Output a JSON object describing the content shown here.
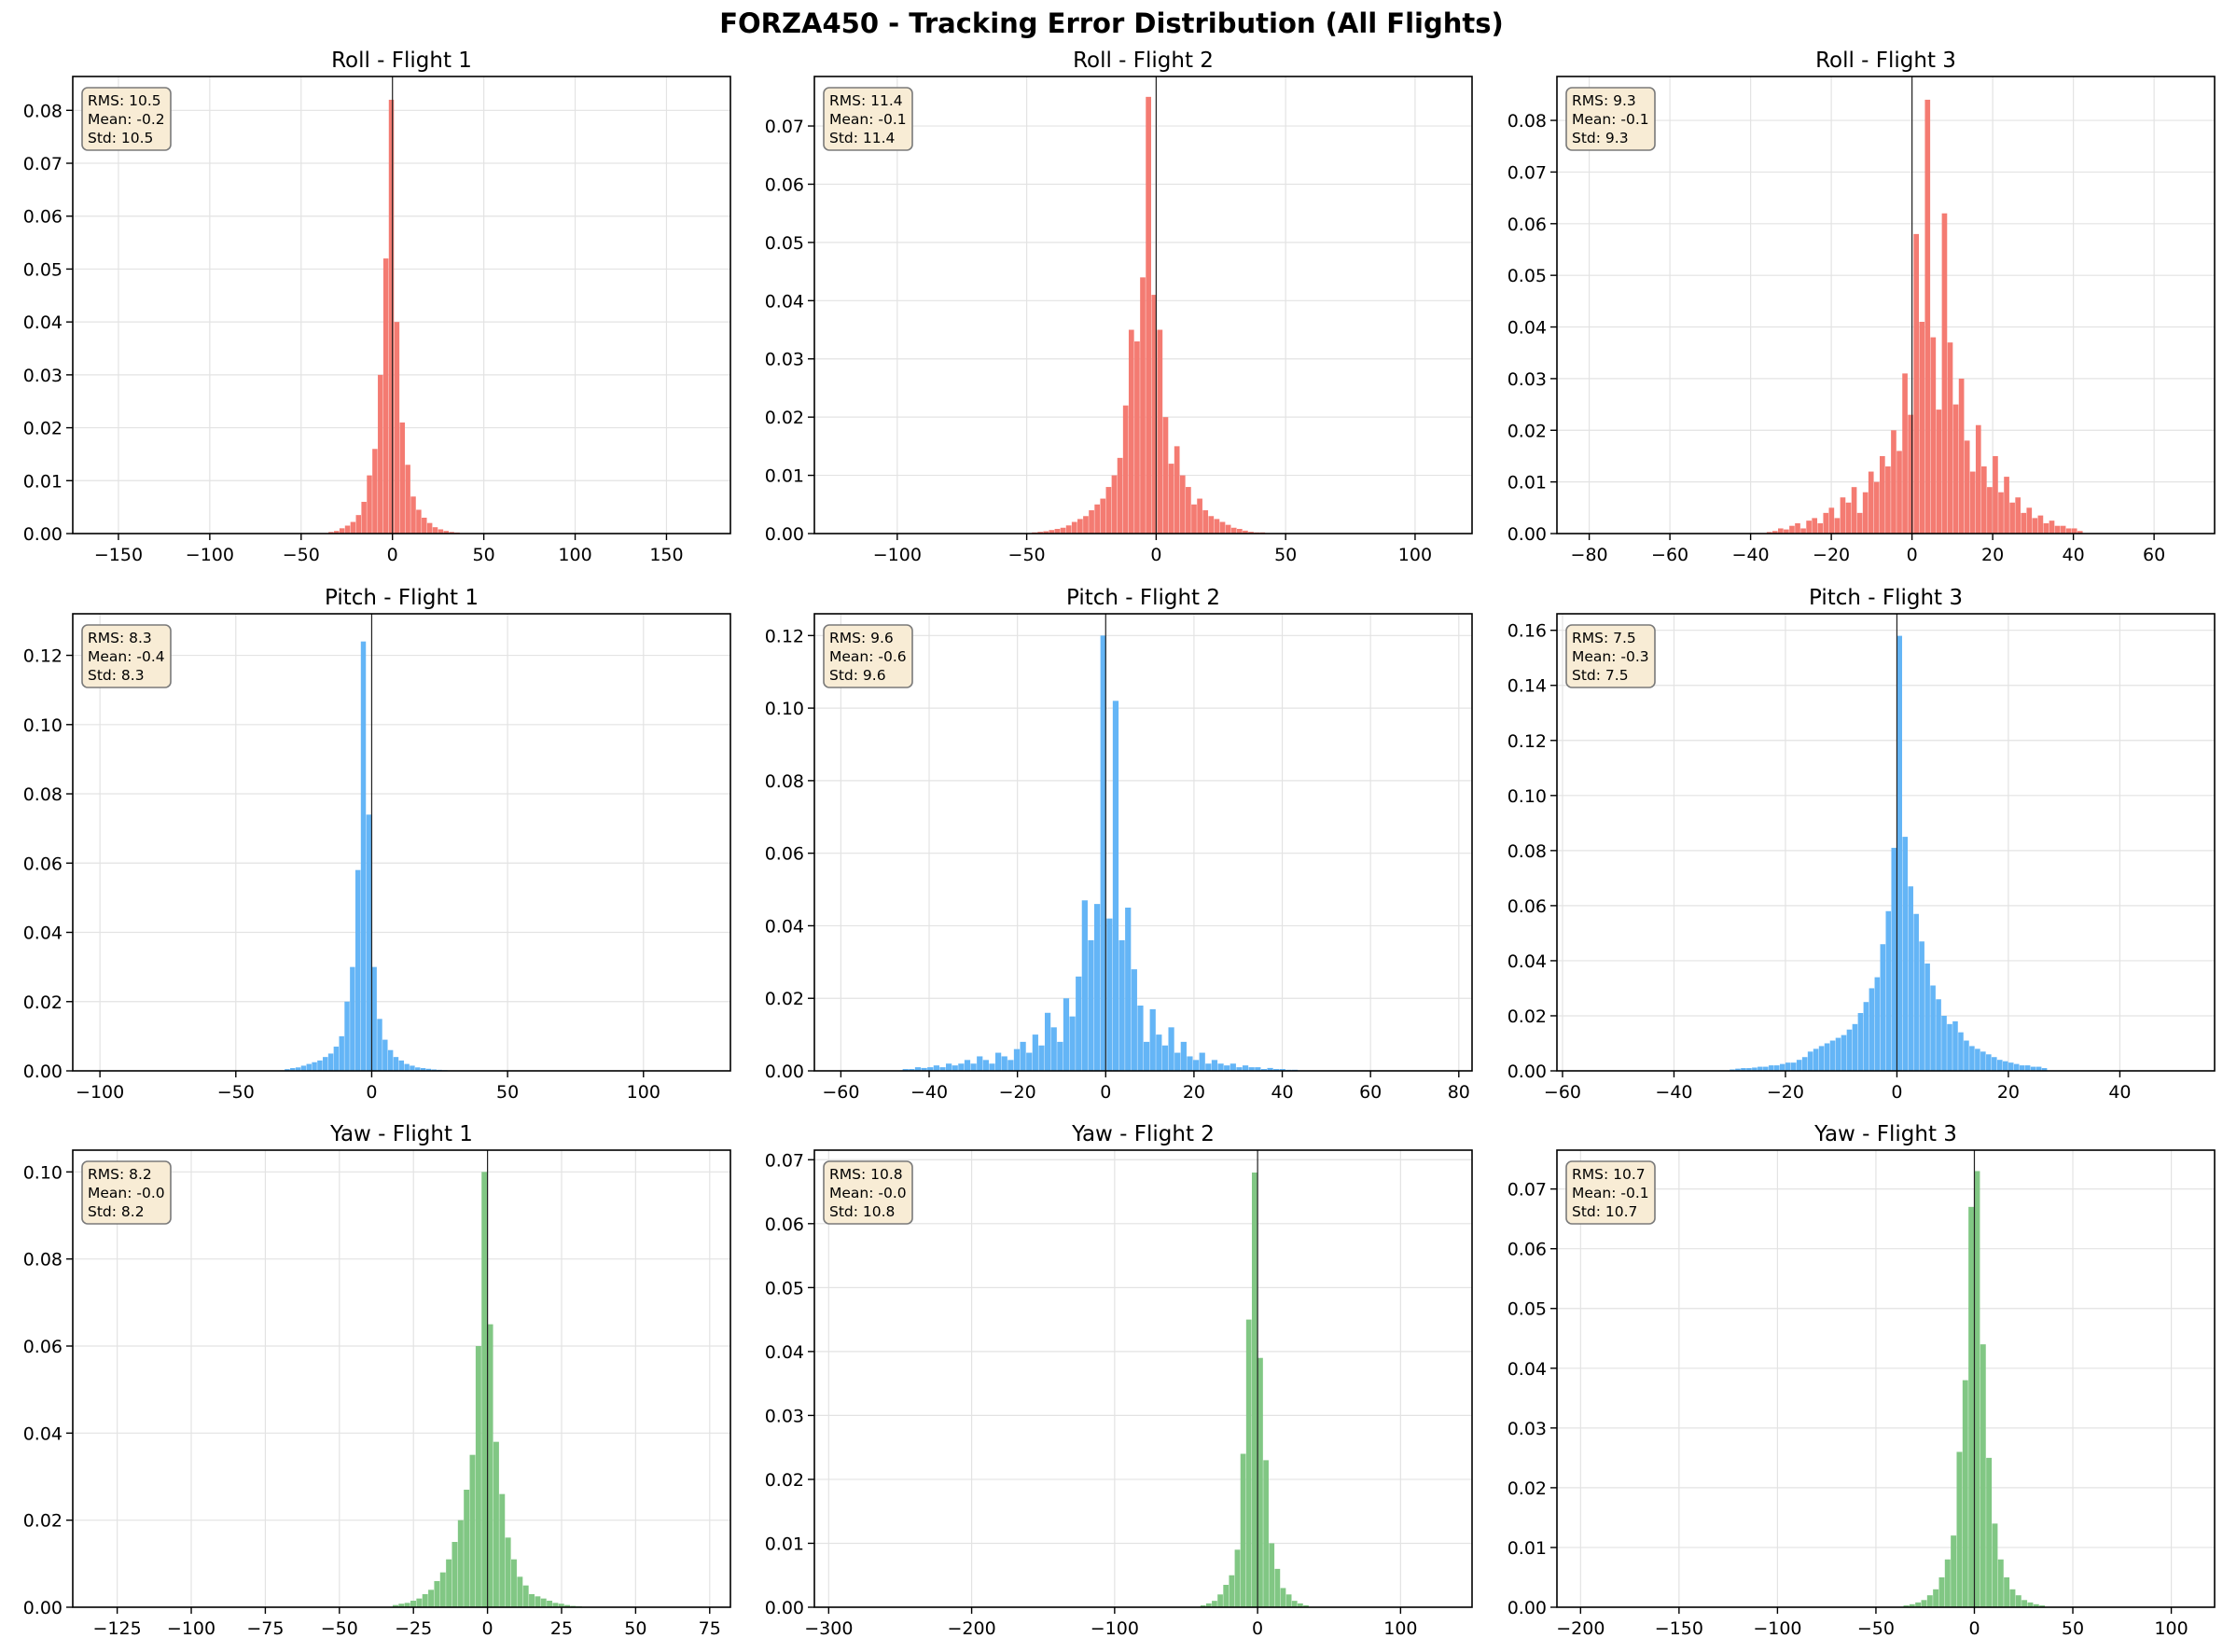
{
  "figure": {
    "title": "FORZA450 - Tracking Error Distribution (All Flights)",
    "colors": {
      "roll": "#f47b72",
      "pitch": "#64b5f6",
      "yaw": "#81c784",
      "statsbox_fill": "#f8ecd5",
      "statsbox_border": "#7a7a7a"
    }
  },
  "chart_data": [
    {
      "type": "bar",
      "title": "Roll - Flight 1",
      "xlabel": "",
      "ylabel": "",
      "xlim": [
        -175,
        185
      ],
      "ylim": [
        0,
        0.0864
      ],
      "xticks": [
        -150,
        -100,
        -50,
        0,
        50,
        100,
        150
      ],
      "yticks": [
        0.0,
        0.01,
        0.02,
        0.03,
        0.04,
        0.05,
        0.06,
        0.07,
        0.08
      ],
      "ytick_decimals": 2,
      "grid": true,
      "color": "roll",
      "stats": [
        "RMS: 10.5",
        "Mean: -0.2",
        "Std: 10.5"
      ],
      "bin_start": -35,
      "bin_width": 3,
      "values": [
        0.0003,
        0.0005,
        0.001,
        0.0015,
        0.0022,
        0.0035,
        0.006,
        0.011,
        0.016,
        0.03,
        0.052,
        0.082,
        0.04,
        0.021,
        0.013,
        0.007,
        0.0045,
        0.003,
        0.002,
        0.0012,
        0.0008,
        0.0005,
        0.0003,
        0.0002
      ]
    },
    {
      "type": "bar",
      "title": "Roll - Flight 2",
      "xlabel": "",
      "ylabel": "",
      "xlim": [
        -132,
        122
      ],
      "ylim": [
        0,
        0.0785
      ],
      "xticks": [
        -100,
        -50,
        0,
        50,
        100
      ],
      "yticks": [
        0.0,
        0.01,
        0.02,
        0.03,
        0.04,
        0.05,
        0.06,
        0.07
      ],
      "ytick_decimals": 2,
      "grid": true,
      "color": "roll",
      "stats": [
        "RMS: 11.4",
        "Mean: -0.1",
        "Std: 11.4"
      ],
      "bin_start": -48,
      "bin_width": 2.2,
      "values": [
        0.0002,
        0.0003,
        0.0004,
        0.0006,
        0.0008,
        0.001,
        0.0014,
        0.002,
        0.0025,
        0.003,
        0.004,
        0.005,
        0.006,
        0.008,
        0.01,
        0.013,
        0.022,
        0.035,
        0.033,
        0.044,
        0.075,
        0.041,
        0.035,
        0.02,
        0.012,
        0.015,
        0.01,
        0.008,
        0.005,
        0.006,
        0.004,
        0.003,
        0.0025,
        0.002,
        0.0015,
        0.001,
        0.0008,
        0.0005,
        0.0003,
        0.0002,
        0.0002
      ]
    },
    {
      "type": "bar",
      "title": "Roll - Flight 3",
      "xlabel": "",
      "ylabel": "",
      "xlim": [
        -88,
        75
      ],
      "ylim": [
        0,
        0.0885
      ],
      "xticks": [
        -80,
        -60,
        -40,
        -20,
        0,
        20,
        40,
        60
      ],
      "yticks": [
        0.0,
        0.01,
        0.02,
        0.03,
        0.04,
        0.05,
        0.06,
        0.07,
        0.08
      ],
      "ytick_decimals": 2,
      "grid": true,
      "color": "roll",
      "stats": [
        "RMS: 9.3",
        "Mean: -0.1",
        "Std: 9.3"
      ],
      "bin_start": -36,
      "bin_width": 1.4,
      "values": [
        0.0003,
        0.0005,
        0.001,
        0.0008,
        0.0015,
        0.002,
        0.001,
        0.0025,
        0.003,
        0.002,
        0.004,
        0.005,
        0.003,
        0.007,
        0.006,
        0.009,
        0.004,
        0.008,
        0.012,
        0.01,
        0.015,
        0.013,
        0.02,
        0.016,
        0.031,
        0.023,
        0.058,
        0.041,
        0.084,
        0.038,
        0.024,
        0.062,
        0.037,
        0.025,
        0.03,
        0.018,
        0.012,
        0.021,
        0.013,
        0.009,
        0.015,
        0.008,
        0.011,
        0.006,
        0.007,
        0.004,
        0.005,
        0.003,
        0.0035,
        0.002,
        0.0025,
        0.0015,
        0.0015,
        0.001,
        0.001,
        0.0005
      ]
    },
    {
      "type": "bar",
      "title": "Pitch - Flight 1",
      "xlabel": "",
      "ylabel": "",
      "xlim": [
        -110,
        132
      ],
      "ylim": [
        0,
        0.132
      ],
      "xticks": [
        -100,
        -50,
        0,
        50,
        100
      ],
      "yticks": [
        0.0,
        0.02,
        0.04,
        0.06,
        0.08,
        0.1,
        0.12
      ],
      "ytick_decimals": 2,
      "grid": true,
      "color": "pitch",
      "stats": [
        "RMS: 8.3",
        "Mean: -0.4",
        "Std: 8.3"
      ],
      "bin_start": -32,
      "bin_width": 2,
      "values": [
        0.0005,
        0.0008,
        0.001,
        0.0015,
        0.002,
        0.0025,
        0.003,
        0.004,
        0.005,
        0.007,
        0.01,
        0.02,
        0.03,
        0.058,
        0.124,
        0.074,
        0.03,
        0.015,
        0.009,
        0.006,
        0.004,
        0.003,
        0.002,
        0.0015,
        0.001,
        0.0008,
        0.0006,
        0.0004,
        0.0003,
        0.0002,
        0.0001
      ]
    },
    {
      "type": "bar",
      "title": "Pitch - Flight 2",
      "xlabel": "",
      "ylabel": "",
      "xlim": [
        -66,
        83
      ],
      "ylim": [
        0,
        0.126
      ],
      "xticks": [
        -60,
        -40,
        -20,
        0,
        20,
        40,
        60,
        80
      ],
      "yticks": [
        0.0,
        0.02,
        0.04,
        0.06,
        0.08,
        0.1,
        0.12
      ],
      "ytick_decimals": 2,
      "grid": true,
      "color": "pitch",
      "stats": [
        "RMS: 9.6",
        "Mean: -0.6",
        "Std: 9.6"
      ],
      "bin_start": -46,
      "bin_width": 1.4,
      "values": [
        0.0005,
        0.0005,
        0.001,
        0.0008,
        0.001,
        0.0015,
        0.001,
        0.002,
        0.0015,
        0.002,
        0.003,
        0.002,
        0.004,
        0.003,
        0.002,
        0.005,
        0.004,
        0.003,
        0.006,
        0.008,
        0.005,
        0.01,
        0.007,
        0.016,
        0.012,
        0.008,
        0.02,
        0.015,
        0.026,
        0.047,
        0.036,
        0.046,
        0.12,
        0.042,
        0.102,
        0.036,
        0.045,
        0.028,
        0.018,
        0.008,
        0.017,
        0.01,
        0.007,
        0.012,
        0.005,
        0.008,
        0.004,
        0.003,
        0.005,
        0.002,
        0.003,
        0.002,
        0.0015,
        0.002,
        0.001,
        0.0015,
        0.001,
        0.001,
        0.0005,
        0.0008,
        0.0005,
        0.0005,
        0.0003,
        0.0003
      ]
    },
    {
      "type": "bar",
      "title": "Pitch - Flight 3",
      "xlabel": "",
      "ylabel": "",
      "xlim": [
        -61,
        57
      ],
      "ylim": [
        0,
        0.166
      ],
      "xticks": [
        -60,
        -40,
        -20,
        0,
        20,
        40
      ],
      "yticks": [
        0.0,
        0.02,
        0.04,
        0.06,
        0.08,
        0.1,
        0.12,
        0.14,
        0.16
      ],
      "ytick_decimals": 2,
      "grid": true,
      "color": "pitch",
      "stats": [
        "RMS: 7.5",
        "Mean: -0.3",
        "Std: 7.5"
      ],
      "bin_start": -30,
      "bin_width": 1,
      "values": [
        0.0005,
        0.0008,
        0.001,
        0.001,
        0.0012,
        0.0015,
        0.0015,
        0.002,
        0.002,
        0.0025,
        0.003,
        0.003,
        0.004,
        0.005,
        0.007,
        0.008,
        0.009,
        0.01,
        0.011,
        0.012,
        0.013,
        0.015,
        0.017,
        0.021,
        0.025,
        0.03,
        0.034,
        0.046,
        0.058,
        0.081,
        0.158,
        0.085,
        0.067,
        0.057,
        0.047,
        0.039,
        0.031,
        0.026,
        0.02,
        0.017,
        0.018,
        0.014,
        0.011,
        0.009,
        0.008,
        0.007,
        0.006,
        0.005,
        0.004,
        0.0035,
        0.003,
        0.0025,
        0.002,
        0.002,
        0.0015,
        0.0015,
        0.001
      ]
    },
    {
      "type": "bar",
      "title": "Yaw - Flight 1",
      "xlabel": "",
      "ylabel": "",
      "xlim": [
        -140,
        82
      ],
      "ylim": [
        0,
        0.105
      ],
      "xticks": [
        -125,
        -100,
        -75,
        -50,
        -25,
        0,
        25,
        50,
        75
      ],
      "yticks": [
        0.0,
        0.02,
        0.04,
        0.06,
        0.08,
        0.1
      ],
      "ytick_decimals": 2,
      "grid": true,
      "color": "yaw",
      "stats": [
        "RMS: 8.2",
        "Mean: -0.0",
        "Std: 8.2"
      ],
      "bin_start": -32,
      "bin_width": 2,
      "values": [
        0.0005,
        0.0008,
        0.001,
        0.0015,
        0.002,
        0.003,
        0.004,
        0.006,
        0.008,
        0.011,
        0.015,
        0.02,
        0.027,
        0.035,
        0.06,
        0.1,
        0.065,
        0.038,
        0.026,
        0.016,
        0.011,
        0.007,
        0.005,
        0.003,
        0.0025,
        0.002,
        0.0015,
        0.001,
        0.0008,
        0.0005,
        0.0003,
        0.0002
      ]
    },
    {
      "type": "bar",
      "title": "Yaw - Flight 2",
      "xlabel": "",
      "ylabel": "",
      "xlim": [
        -310,
        150
      ],
      "ylim": [
        0,
        0.0715
      ],
      "xticks": [
        -300,
        -200,
        -100,
        0,
        100
      ],
      "yticks": [
        0.0,
        0.01,
        0.02,
        0.03,
        0.04,
        0.05,
        0.06,
        0.07
      ],
      "ytick_decimals": 2,
      "grid": true,
      "color": "yaw",
      "stats": [
        "RMS: 10.8",
        "Mean: -0.0",
        "Std: 10.8"
      ],
      "bin_start": -40,
      "bin_width": 4,
      "values": [
        0.0003,
        0.0006,
        0.001,
        0.002,
        0.0035,
        0.005,
        0.009,
        0.024,
        0.045,
        0.068,
        0.039,
        0.023,
        0.01,
        0.006,
        0.003,
        0.002,
        0.001,
        0.0006,
        0.0003
      ]
    },
    {
      "type": "bar",
      "title": "Yaw - Flight 3",
      "xlabel": "",
      "ylabel": "",
      "xlim": [
        -212,
        122
      ],
      "ylim": [
        0,
        0.0765
      ],
      "xticks": [
        -200,
        -150,
        -100,
        -50,
        0,
        50,
        100
      ],
      "yticks": [
        0.0,
        0.01,
        0.02,
        0.03,
        0.04,
        0.05,
        0.06,
        0.07
      ],
      "ytick_decimals": 2,
      "grid": true,
      "color": "yaw",
      "stats": [
        "RMS: 10.7",
        "Mean: -0.1",
        "Std: 10.7"
      ],
      "bin_start": -36,
      "bin_width": 3,
      "values": [
        0.0003,
        0.0005,
        0.0008,
        0.0012,
        0.002,
        0.003,
        0.005,
        0.008,
        0.012,
        0.026,
        0.038,
        0.067,
        0.073,
        0.044,
        0.025,
        0.014,
        0.008,
        0.005,
        0.003,
        0.002,
        0.0012,
        0.0008,
        0.0005,
        0.0003
      ]
    }
  ]
}
